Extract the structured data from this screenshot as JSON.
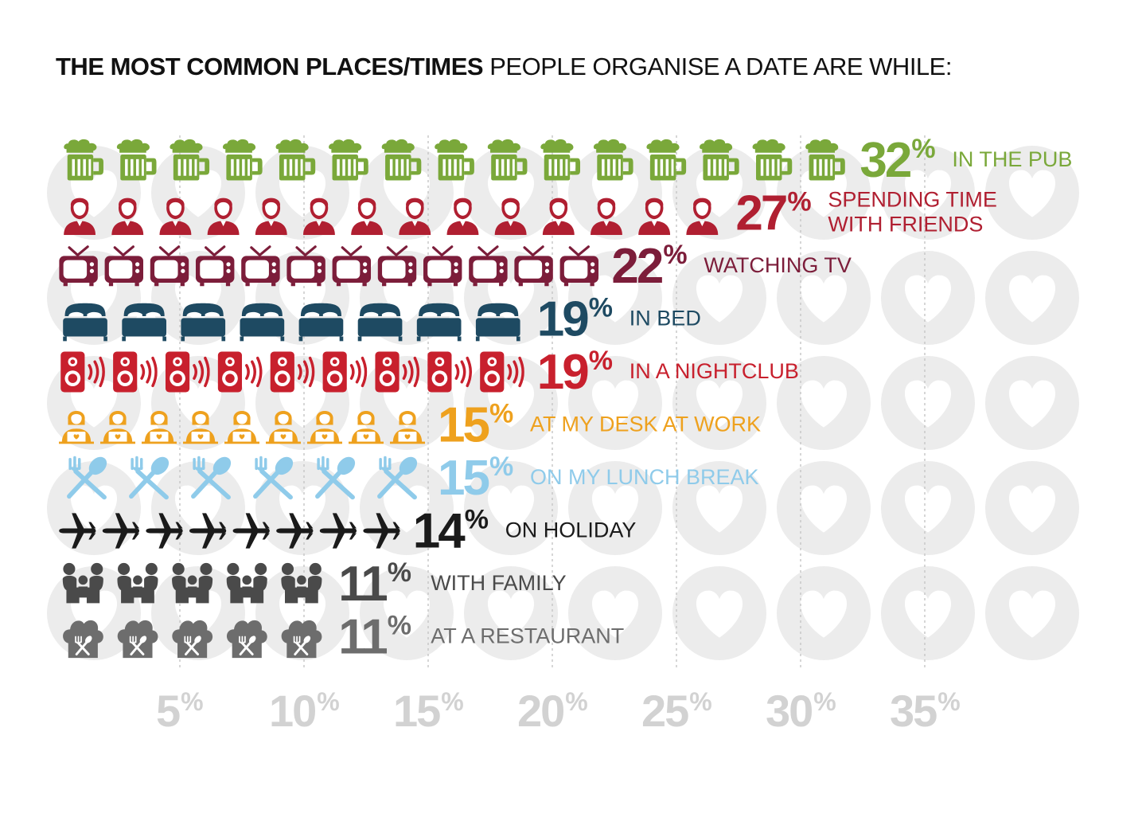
{
  "title": {
    "bold": "THE MOST COMMON PLACES/TIMES",
    "rest": " PEOPLE ORGANISE A DATE ARE WHILE:"
  },
  "chart_data": {
    "type": "bar",
    "title": "THE MOST COMMON PLACES/TIMES PEOPLE ORGANISE A DATE ARE WHILE:",
    "orientation": "horizontal",
    "categories": [
      "IN THE PUB",
      "SPENDING TIME WITH FRIENDS",
      "WATCHING TV",
      "IN BED",
      "IN A NIGHTCLUB",
      "AT MY DESK AT WORK",
      "ON MY LUNCH BREAK",
      "ON HOLIDAY",
      "WITH FAMILY",
      "AT A RESTAURANT"
    ],
    "values": [
      32,
      27,
      22,
      19,
      19,
      15,
      15,
      14,
      11,
      11
    ],
    "value_labels": [
      "32%",
      "27%",
      "22%",
      "19%",
      "19%",
      "15%",
      "15%",
      "14%",
      "11%",
      "11%"
    ],
    "label_lines": [
      [
        "IN THE PUB"
      ],
      [
        "SPENDING TIME",
        "WITH FRIENDS"
      ],
      [
        "WATCHING TV"
      ],
      [
        "IN BED"
      ],
      [
        "IN A NIGHTCLUB"
      ],
      [
        "AT MY DESK AT WORK"
      ],
      [
        "ON MY LUNCH BREAK"
      ],
      [
        "ON HOLIDAY"
      ],
      [
        "WITH FAMILY"
      ],
      [
        "AT A RESTAURANT"
      ]
    ],
    "colors": [
      "#7aa83a",
      "#b01f31",
      "#7c1d3a",
      "#1e4a62",
      "#c8202d",
      "#eea11e",
      "#8fcbea",
      "#1a1a1a",
      "#4a4a4a",
      "#6d6d6d"
    ],
    "icons": [
      "beer-mug",
      "person",
      "tv",
      "bed",
      "speaker",
      "person-laptop",
      "spoon-fork",
      "airplane",
      "family",
      "chef-hat"
    ],
    "icon_counts": [
      15,
      14,
      12,
      8,
      9,
      9,
      6,
      8,
      5,
      5
    ],
    "x_ticks": [
      "5%",
      "10%",
      "15%",
      "20%",
      "25%",
      "30%",
      "35%"
    ],
    "x_tick_values": [
      5,
      10,
      15,
      20,
      25,
      30,
      35
    ],
    "xlim": [
      0,
      36
    ],
    "grid": true,
    "background_icon": "heart",
    "tick_color": "#d2d2d2",
    "grid_color": "#c8c8c8",
    "background_color": "#ececec"
  }
}
